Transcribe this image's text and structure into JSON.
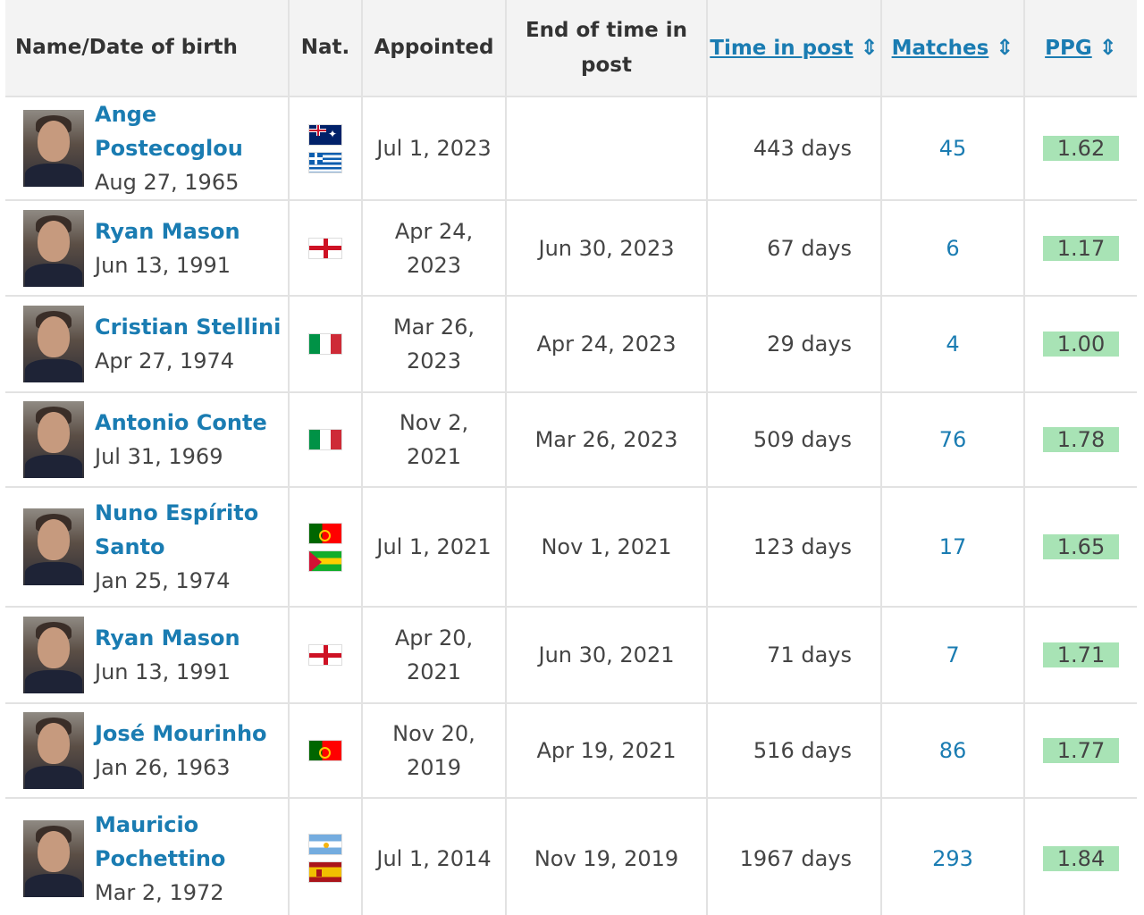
{
  "header": {
    "name": "Name/Date of birth",
    "nat": "Nat.",
    "appointed": "Appointed",
    "end_line1": "End of time in",
    "end_line2": "post",
    "time_in_post": "Time in post",
    "matches": "Matches",
    "ppg": "PPG"
  },
  "rows": [
    {
      "name": "Ange Postecoglou",
      "dob": "Aug 27, 1965",
      "flags": [
        "au",
        "gr"
      ],
      "appointed": "Jul 1, 2023",
      "end": "",
      "time_in_post": "443 days",
      "matches": "45",
      "ppg": "1.62"
    },
    {
      "name": "Ryan Mason",
      "dob": "Jun 13, 1991",
      "flags": [
        "en"
      ],
      "appointed": "Apr 24, 2023",
      "end": "Jun 30, 2023",
      "time_in_post": "67 days",
      "matches": "6",
      "ppg": "1.17"
    },
    {
      "name": "Cristian Stellini",
      "dob": "Apr 27, 1974",
      "flags": [
        "it"
      ],
      "appointed": "Mar 26, 2023",
      "end": "Apr 24, 2023",
      "time_in_post": "29 days",
      "matches": "4",
      "ppg": "1.00"
    },
    {
      "name": "Antonio Conte",
      "dob": "Jul 31, 1969",
      "flags": [
        "it"
      ],
      "appointed": "Nov 2, 2021",
      "end": "Mar 26, 2023",
      "time_in_post": "509 days",
      "matches": "76",
      "ppg": "1.78"
    },
    {
      "name": "Nuno Espírito Santo",
      "dob": "Jan 25, 1974",
      "flags": [
        "pt",
        "st"
      ],
      "appointed": "Jul 1, 2021",
      "end": "Nov 1, 2021",
      "time_in_post": "123 days",
      "matches": "17",
      "ppg": "1.65"
    },
    {
      "name": "Ryan Mason",
      "dob": "Jun 13, 1991",
      "flags": [
        "en"
      ],
      "appointed": "Apr 20, 2021",
      "end": "Jun 30, 2021",
      "time_in_post": "71 days",
      "matches": "7",
      "ppg": "1.71"
    },
    {
      "name": "José Mourinho",
      "dob": "Jan 26, 1963",
      "flags": [
        "pt"
      ],
      "appointed": "Nov 20, 2019",
      "end": "Apr 19, 2021",
      "time_in_post": "516 days",
      "matches": "86",
      "ppg": "1.77"
    },
    {
      "name": "Mauricio Pochettino",
      "dob": "Mar 2, 1972",
      "flags": [
        "ar",
        "es"
      ],
      "appointed": "Jul 1, 2014",
      "end": "Nov 19, 2019",
      "time_in_post": "1967 days",
      "matches": "293",
      "ppg": "1.84"
    }
  ],
  "colors": {
    "link": "#1a7cb2",
    "ppg_highlight": "#a8e3b5",
    "header_bg": "#f3f3f3"
  },
  "icons": {
    "sort": "sort-updown-icon"
  }
}
